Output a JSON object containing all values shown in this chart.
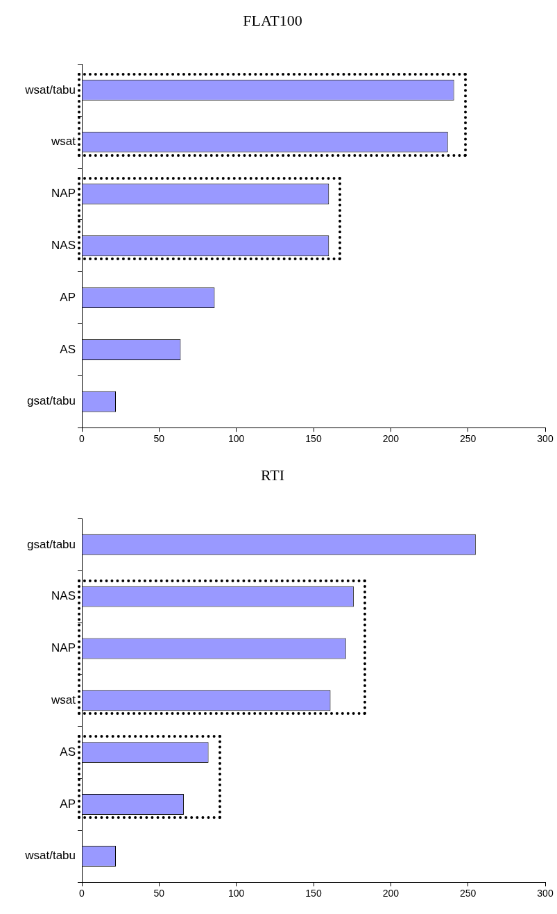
{
  "chart_data": [
    {
      "type": "bar",
      "title": "FLAT100",
      "orientation": "horizontal",
      "categories": [
        "wsat/tabu",
        "wsat",
        "NAP",
        "NAS",
        "AP",
        "AS",
        "gsat/tabu"
      ],
      "values": [
        241,
        237,
        160,
        160,
        86,
        64,
        22
      ],
      "color": "#9999ff",
      "xlim": [
        0,
        300
      ],
      "xticks": [
        0,
        50,
        100,
        150,
        200,
        250,
        300
      ],
      "grid": false,
      "legend": false
    },
    {
      "type": "bar",
      "title": "RTI",
      "orientation": "horizontal",
      "categories": [
        "gsat/tabu",
        "NAS",
        "NAP",
        "wsat",
        "AS",
        "AP",
        "wsat/tabu"
      ],
      "values": [
        255,
        176,
        171,
        161,
        82,
        66,
        22
      ],
      "color": "#9999ff",
      "xlim": [
        0,
        300
      ],
      "xticks": [
        0,
        50,
        100,
        150,
        200,
        250,
        300
      ],
      "grid": false,
      "legend": false
    }
  ]
}
